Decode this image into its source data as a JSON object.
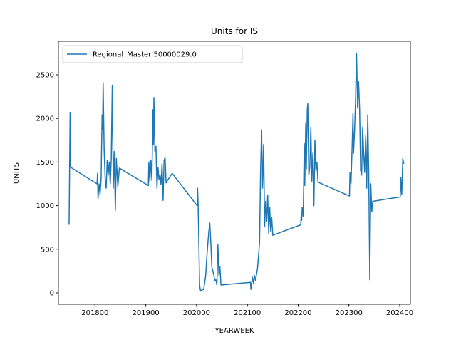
{
  "chart_data": {
    "type": "line",
    "title": "Units for IS",
    "x_label": "YEARWEEK",
    "y_label": "UNITS",
    "legend": "upper left",
    "xlim": [
      201728,
      202421
    ],
    "ylim": [
      -131,
      2884
    ],
    "xticks": [
      201800,
      201900,
      202000,
      202100,
      202200,
      202300,
      202400
    ],
    "yticks": [
      0,
      500,
      1000,
      1500,
      2000,
      2500
    ],
    "x": [
      201749,
      201751,
      201752,
      201804,
      201805,
      201806,
      201808,
      201810,
      201812,
      201814,
      201815,
      201816,
      201818,
      201820,
      201822,
      201824,
      201826,
      201828,
      201830,
      201832,
      201834,
      201836,
      201838,
      201840,
      201842,
      201845,
      201848,
      201905,
      201906,
      201908,
      201910,
      201912,
      201914,
      201915,
      201916,
      201918,
      201920,
      201922,
      201924,
      201926,
      201928,
      201930,
      201932,
      201934,
      201936,
      201938,
      201940,
      201944,
      201952,
      202001,
      202002,
      202003,
      202006,
      202008,
      202010,
      202014,
      202018,
      202020,
      202024,
      202026,
      202028,
      202030,
      202034,
      202036,
      202038,
      202040,
      202042,
      202044,
      202046,
      202048,
      202106,
      202107,
      202110,
      202112,
      202114,
      202116,
      202120,
      202124,
      202126,
      202128,
      202130,
      202132,
      202134,
      202136,
      202138,
      202140,
      202142,
      202144,
      202146,
      202148,
      202150,
      202205,
      202206,
      202207,
      202208,
      202210,
      202212,
      202213,
      202215,
      202216,
      202218,
      202219,
      202221,
      202223,
      202225,
      202227,
      202229,
      202231,
      202233,
      202235,
      202237,
      202239,
      202301,
      202302,
      202304,
      202306,
      202308,
      202309,
      202311,
      202313,
      202315,
      202317,
      202319,
      202321,
      202323,
      202325,
      202327,
      202329,
      202331,
      202333,
      202335,
      202337,
      202339,
      202341,
      202343,
      202345,
      202347,
      202401,
      202402,
      202404,
      202406,
      202408
    ],
    "series": [
      {
        "name": "Regional_Master 50000029.0",
        "color": "#1f77b4",
        "values": [
          780,
          2070,
          1440,
          1250,
          1370,
          1080,
          1250,
          1130,
          1300,
          2040,
          1870,
          2410,
          1650,
          1300,
          1200,
          1520,
          1350,
          1500,
          1250,
          1530,
          2380,
          1200,
          1620,
          940,
          1540,
          1220,
          1430,
          1230,
          1500,
          1280,
          1520,
          1290,
          2100,
          1700,
          2240,
          1620,
          1680,
          1200,
          1440,
          1300,
          1350,
          1240,
          1480,
          1060,
          1520,
          1550,
          1260,
          1300,
          1370,
          1000,
          1200,
          1030,
          80,
          20,
          30,
          40,
          200,
          400,
          700,
          800,
          580,
          300,
          200,
          140,
          150,
          90,
          550,
          200,
          300,
          90,
          120,
          40,
          180,
          110,
          200,
          140,
          280,
          580,
          1400,
          1870,
          1200,
          1700,
          760,
          1050,
          820,
          1120,
          680,
          980,
          700,
          860,
          660,
          780,
          900,
          830,
          980,
          880,
          1710,
          1230,
          1950,
          1420,
          2110,
          2170,
          1350,
          1450,
          1900,
          1280,
          1600,
          1000,
          1750,
          1400,
          1500,
          1270,
          1110,
          1380,
          1250,
          1620,
          2060,
          1600,
          1850,
          2200,
          2740,
          2120,
          2420,
          2100,
          1400,
          1350,
          1900,
          1600,
          1380,
          1800,
          1200,
          2040,
          1340,
          150,
          1250,
          930,
          1050,
          1100,
          1320,
          1130,
          1540,
          1480
        ]
      }
    ]
  }
}
